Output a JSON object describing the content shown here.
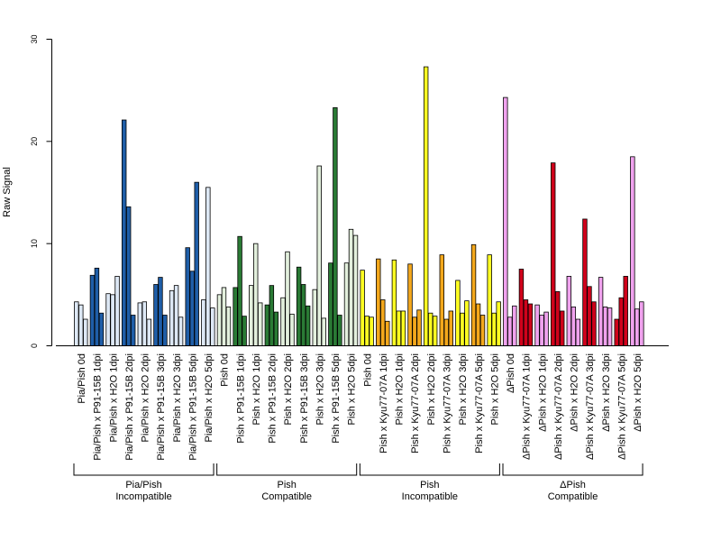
{
  "chart_data": {
    "type": "bar",
    "ylabel": "Raw Signal",
    "ylim": [
      0,
      30
    ],
    "yticks": [
      0,
      10,
      20,
      30
    ],
    "grid": false,
    "legend": "none",
    "colors": {
      "lightblue": "#dde8f5",
      "darkblue": "#1f5ea8",
      "lightgreen": "#e3f0dd",
      "darkgreen": "#2a7a35",
      "yellow": "#ffff22",
      "orange": "#f4a81c",
      "pink": "#f0a2ee",
      "red": "#d0021b",
      "axis": "#000000"
    },
    "conditions": [
      {
        "label": "Pia/Pish 0d",
        "color": "lightblue",
        "values": [
          4.3,
          4.0,
          2.6
        ]
      },
      {
        "label": "Pia/Pish x P91-15B 1dpi",
        "color": "darkblue",
        "values": [
          6.9,
          7.6,
          3.2
        ]
      },
      {
        "label": "Pia/Pish x H2O 1dpi",
        "color": "lightblue",
        "values": [
          5.1,
          5.0,
          6.8
        ]
      },
      {
        "label": "Pia/Pish x P91-15B 2dpi",
        "color": "darkblue",
        "values": [
          22.1,
          13.6,
          3.0
        ]
      },
      {
        "label": "Pia/Pish x H2O 2dpi",
        "color": "lightblue",
        "values": [
          4.2,
          4.3,
          2.6
        ]
      },
      {
        "label": "Pia/Pish x P91-15B 3dpi",
        "color": "darkblue",
        "values": [
          6.0,
          6.7,
          3.0
        ]
      },
      {
        "label": "Pia/Pish x H2O 3dpi",
        "color": "lightblue",
        "values": [
          5.4,
          5.9,
          2.8
        ]
      },
      {
        "label": "Pia/Pish x P91-15B 5dpi",
        "color": "darkblue",
        "values": [
          9.6,
          7.3,
          16.0
        ]
      },
      {
        "label": "Pia/Pish x H2O 5dpi",
        "color": "lightblue",
        "values": [
          4.5,
          15.5,
          3.7
        ]
      },
      {
        "label": "Pish 0d",
        "color": "lightgreen",
        "values": [
          5.0,
          5.7,
          3.8
        ]
      },
      {
        "label": "Pish x P91-15B 1dpi",
        "color": "darkgreen",
        "values": [
          5.7,
          10.7,
          2.9
        ]
      },
      {
        "label": "Pish x H2O 1dpi",
        "color": "lightgreen",
        "values": [
          5.9,
          10.0,
          4.2
        ]
      },
      {
        "label": "Pish x P91-15B 2dpi",
        "color": "darkgreen",
        "values": [
          4.0,
          5.9,
          3.3
        ]
      },
      {
        "label": "Pish x H2O 2dpi",
        "color": "lightgreen",
        "values": [
          4.7,
          9.2,
          3.1
        ]
      },
      {
        "label": "Pish x P91-15B 3dpi",
        "color": "darkgreen",
        "values": [
          7.7,
          6.0,
          3.9
        ]
      },
      {
        "label": "Pish x H2O 3dpi",
        "color": "lightgreen",
        "values": [
          5.5,
          17.6,
          2.7
        ]
      },
      {
        "label": "Pish x P91-15B 5dpi",
        "color": "darkgreen",
        "values": [
          8.1,
          23.3,
          3.0
        ]
      },
      {
        "label": "Pish x H2O 5dpi",
        "color": "lightgreen",
        "values": [
          8.1,
          11.4,
          10.8
        ]
      },
      {
        "label": "Pish 0d",
        "color": "yellow",
        "values": [
          7.4,
          2.9,
          2.8
        ]
      },
      {
        "label": "Pish x Kyu77-07A 1dpi",
        "color": "orange",
        "values": [
          8.5,
          4.5,
          2.4
        ]
      },
      {
        "label": "Pish x H2O 1dpi",
        "color": "yellow",
        "values": [
          8.4,
          3.4,
          3.4
        ]
      },
      {
        "label": "Pish x Kyu77-07A 2dpi",
        "color": "orange",
        "values": [
          8.0,
          2.8,
          3.5
        ]
      },
      {
        "label": "Pish x H2O 2dpi",
        "color": "yellow",
        "values": [
          27.3,
          3.2,
          2.9
        ]
      },
      {
        "label": "Pish x Kyu77-07A 3dpi",
        "color": "orange",
        "values": [
          8.9,
          2.6,
          3.4
        ]
      },
      {
        "label": "Pish x H2O 3dpi",
        "color": "yellow",
        "values": [
          6.4,
          3.2,
          4.4
        ]
      },
      {
        "label": "Pish x Kyu77-07A 5dpi",
        "color": "orange",
        "values": [
          9.9,
          4.1,
          3.0
        ]
      },
      {
        "label": "Pish x H2O 5dpi",
        "color": "yellow",
        "values": [
          8.9,
          3.2,
          4.3
        ]
      },
      {
        "label": "ΔPish 0d",
        "color": "pink",
        "values": [
          24.3,
          2.8,
          3.9
        ]
      },
      {
        "label": "ΔPish x Kyu77-07A 1dpi",
        "color": "red",
        "values": [
          7.5,
          4.5,
          4.1
        ]
      },
      {
        "label": "ΔPish x H2O 1dpi",
        "color": "pink",
        "values": [
          4.0,
          3.0,
          3.3
        ]
      },
      {
        "label": "ΔPish x Kyu77-07A 2dpi",
        "color": "red",
        "values": [
          17.9,
          5.3,
          3.4
        ]
      },
      {
        "label": "ΔPish x H2O 2dpi",
        "color": "pink",
        "values": [
          6.8,
          3.8,
          2.6
        ]
      },
      {
        "label": "ΔPish x Kyu77-07A 3dpi",
        "color": "red",
        "values": [
          12.4,
          5.8,
          4.3
        ]
      },
      {
        "label": "ΔPish x H2O 3dpi",
        "color": "pink",
        "values": [
          6.7,
          3.8,
          3.7
        ]
      },
      {
        "label": "ΔPish x Kyu77-07A 5dpi",
        "color": "red",
        "values": [
          2.6,
          4.7,
          6.8
        ]
      },
      {
        "label": "ΔPish x H2O 5dpi",
        "color": "pink",
        "values": [
          18.5,
          3.6,
          4.3
        ]
      }
    ],
    "groups": [
      {
        "line1": "Pia/Pish",
        "line2": "Incompatible",
        "start": 0,
        "end": 8
      },
      {
        "line1": "Pish",
        "line2": "Compatible",
        "start": 9,
        "end": 17
      },
      {
        "line1": "Pish",
        "line2": "Incompatible",
        "start": 18,
        "end": 26
      },
      {
        "line1": "ΔPish",
        "line2": "Compatible",
        "start": 27,
        "end": 35
      }
    ]
  }
}
